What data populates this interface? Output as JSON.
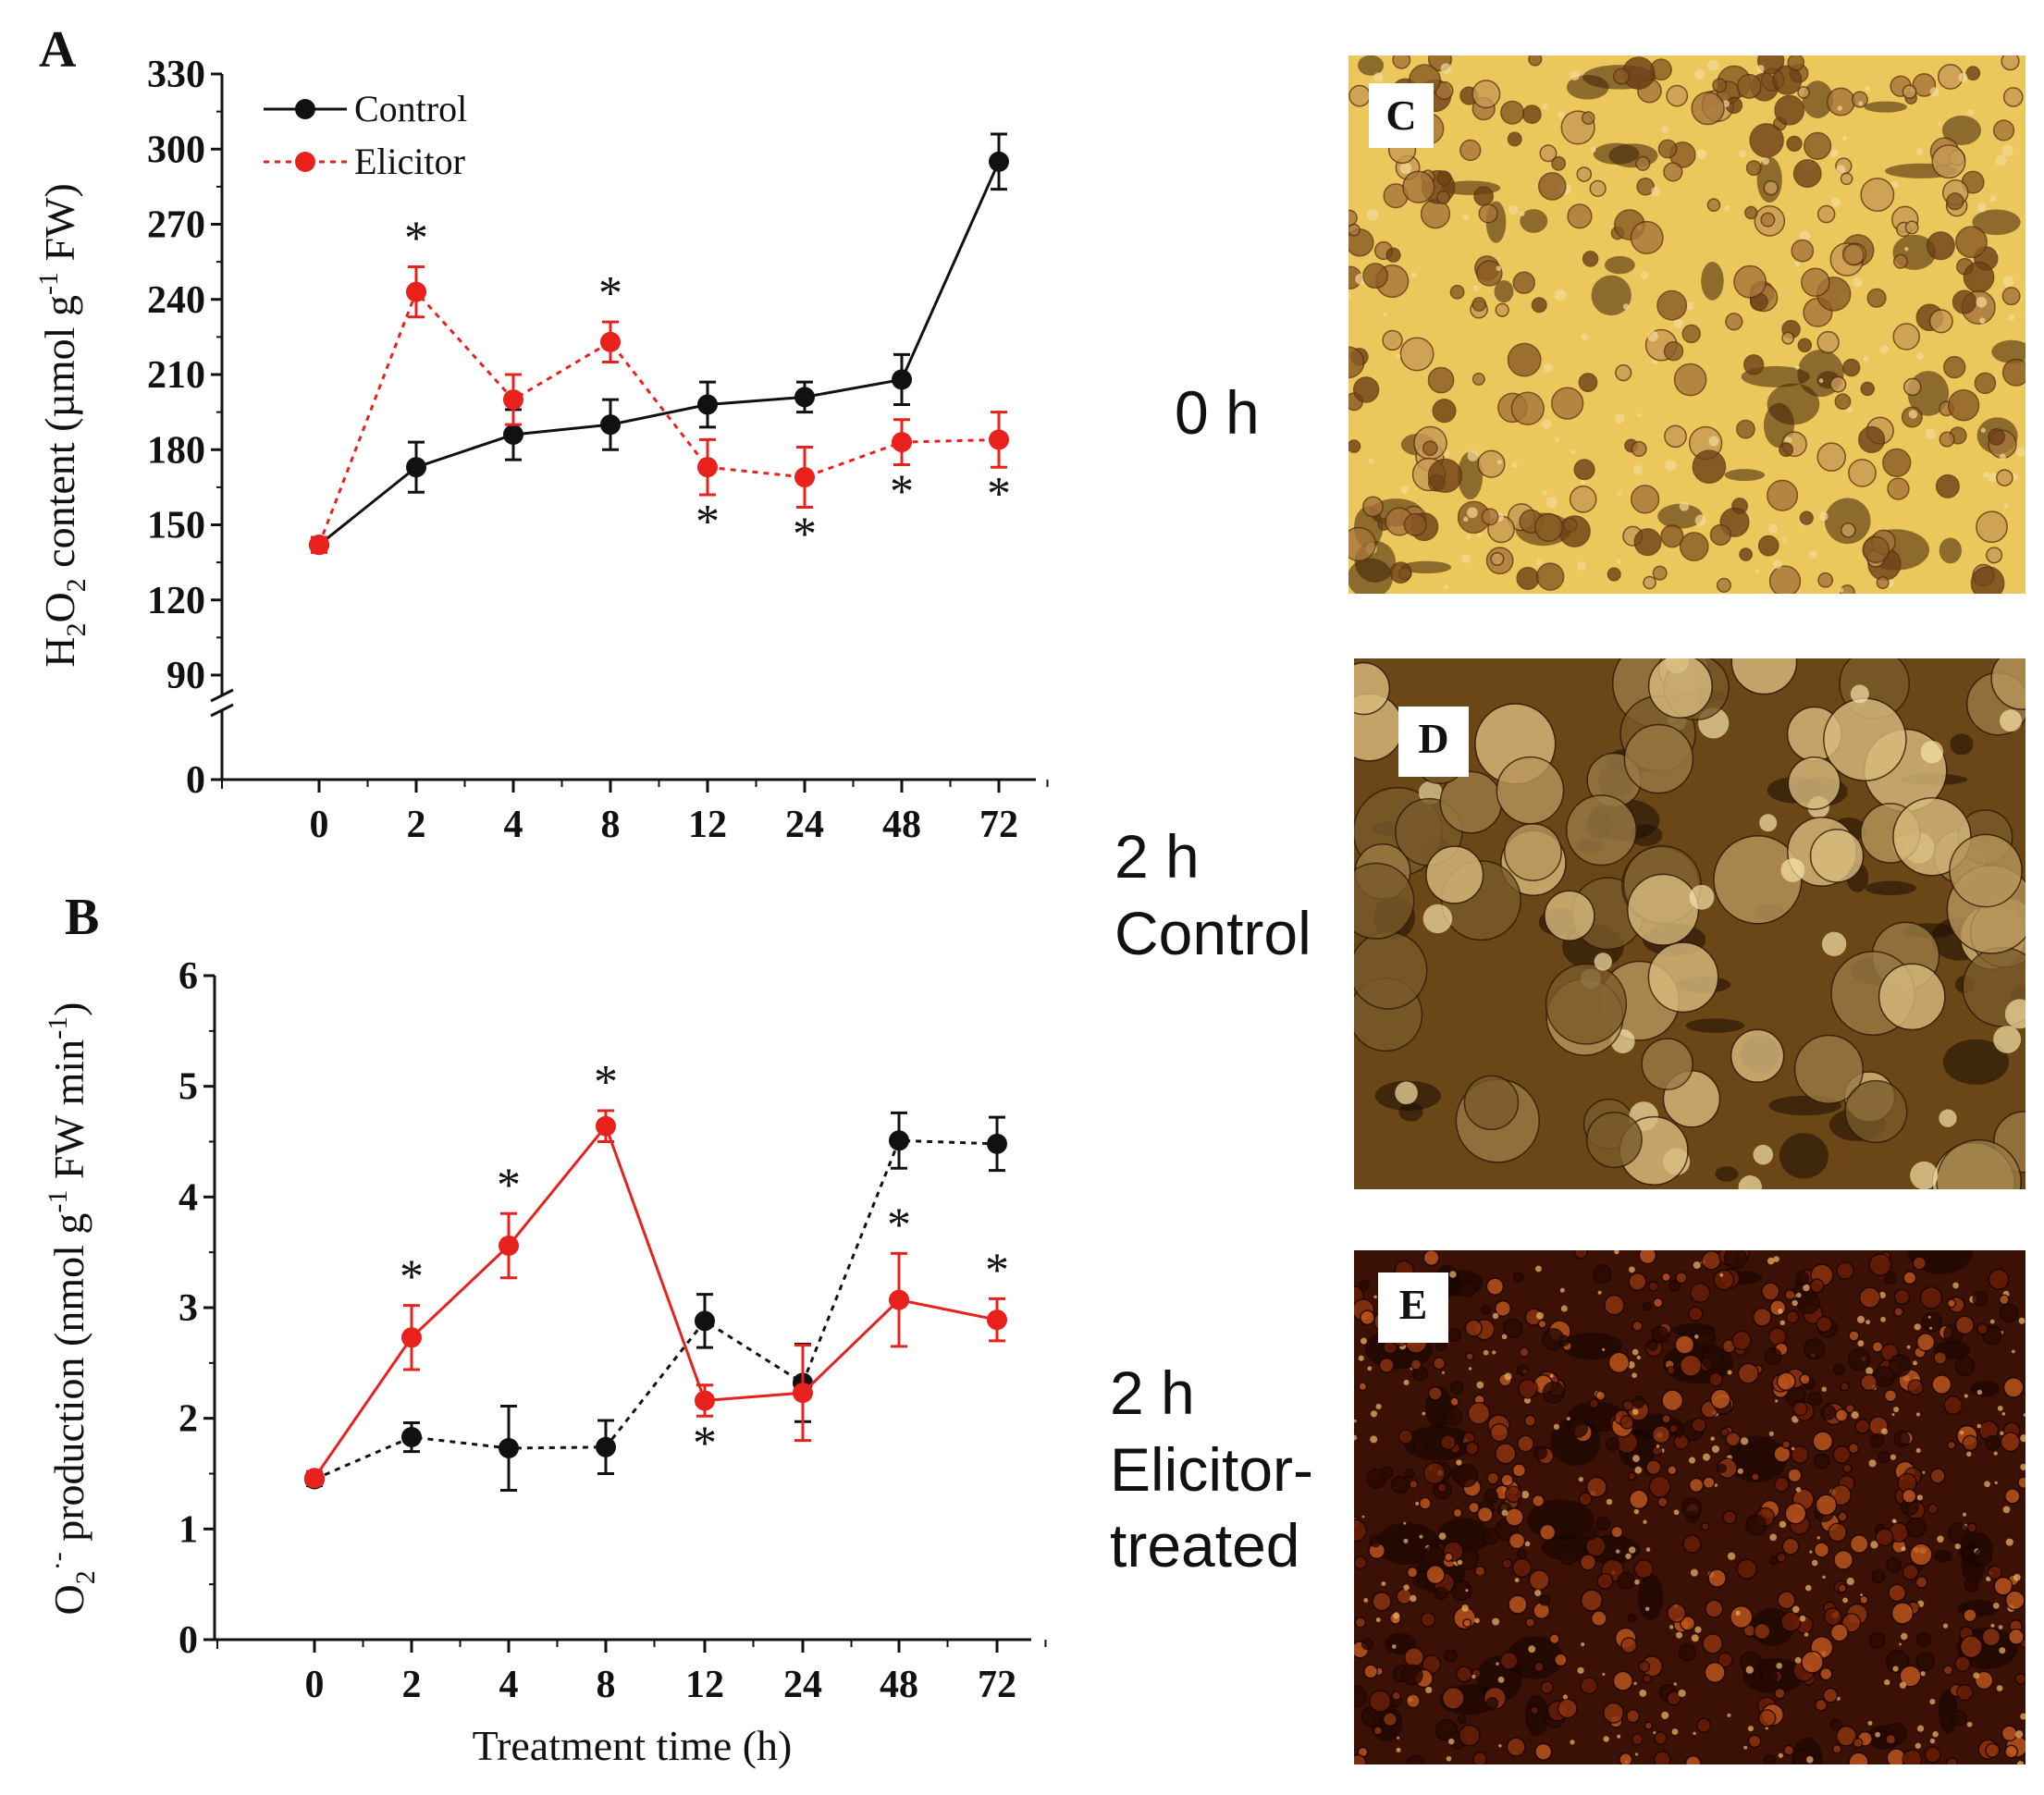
{
  "chart_data": [
    {
      "panel": "A",
      "type": "line",
      "categories": [
        "0",
        "2",
        "4",
        "8",
        "12",
        "24",
        "48",
        "72"
      ],
      "ylabel_parts": [
        "H",
        "2",
        "O",
        "2",
        " content (µmol g",
        "-1",
        " FW)"
      ],
      "yticks": [
        0,
        90,
        120,
        150,
        180,
        210,
        240,
        270,
        300,
        330
      ],
      "ylim": [
        0,
        330
      ],
      "axis_break": [
        0,
        90
      ],
      "legend": {
        "position": "top-left",
        "entries": [
          "Control",
          "Elicitor"
        ]
      },
      "series": [
        {
          "name": "Control",
          "color": "#111111",
          "dash": "solid",
          "values": [
            142,
            173,
            186,
            190,
            198,
            201,
            208,
            295
          ],
          "errors": [
            3,
            10,
            10,
            10,
            9,
            6,
            10,
            11
          ]
        },
        {
          "name": "Elicitor",
          "color": "#e8211d",
          "dash": "dotted",
          "values": [
            142,
            243,
            200,
            223,
            173,
            169,
            183,
            184
          ],
          "errors": [
            3,
            10,
            10,
            8,
            11,
            12,
            9,
            11
          ]
        }
      ],
      "significance": [
        {
          "index": 1,
          "series": "Elicitor",
          "side": "above",
          "label": "*"
        },
        {
          "index": 3,
          "series": "Elicitor",
          "side": "above",
          "label": "*"
        },
        {
          "index": 4,
          "series": "Elicitor",
          "side": "below",
          "label": "*"
        },
        {
          "index": 5,
          "series": "Elicitor",
          "side": "below",
          "label": "*"
        },
        {
          "index": 6,
          "series": "Elicitor",
          "side": "below",
          "label": "*"
        },
        {
          "index": 7,
          "series": "Elicitor",
          "side": "below",
          "label": "*"
        }
      ]
    },
    {
      "panel": "B",
      "type": "line",
      "categories": [
        "0",
        "2",
        "4",
        "8",
        "12",
        "24",
        "48",
        "72"
      ],
      "xlabel": "Treatment time (h)",
      "ylabel_parts": [
        "O",
        "2",
        "·-",
        " production (nmol g",
        "-1",
        " FW min",
        "-1",
        ")"
      ],
      "yticks": [
        0,
        1,
        2,
        3,
        4,
        5,
        6
      ],
      "ylim": [
        0,
        6
      ],
      "series": [
        {
          "name": "Control",
          "color": "#111111",
          "dash": "dotted",
          "values": [
            1.45,
            1.83,
            1.73,
            1.74,
            2.88,
            2.32,
            4.51,
            4.48
          ],
          "errors": [
            0.06,
            0.13,
            0.38,
            0.24,
            0.24,
            0.35,
            0.25,
            0.24
          ]
        },
        {
          "name": "Elicitor",
          "color": "#e8211d",
          "dash": "solid",
          "values": [
            1.46,
            2.73,
            3.56,
            4.64,
            2.16,
            2.23,
            3.07,
            2.89
          ],
          "errors": [
            0.06,
            0.29,
            0.29,
            0.14,
            0.14,
            0.43,
            0.42,
            0.19
          ]
        }
      ],
      "significance": [
        {
          "index": 1,
          "series": "Elicitor",
          "side": "above",
          "label": "*"
        },
        {
          "index": 2,
          "series": "Elicitor",
          "side": "above",
          "label": "*"
        },
        {
          "index": 3,
          "series": "Elicitor",
          "side": "above",
          "label": "*"
        },
        {
          "index": 4,
          "series": "Elicitor",
          "side": "below",
          "label": "*"
        },
        {
          "index": 6,
          "series": "Elicitor",
          "side": "above",
          "label": "*"
        },
        {
          "index": 7,
          "series": "Elicitor",
          "side": "above",
          "label": "*"
        }
      ]
    }
  ],
  "micrographs": [
    {
      "tag": "C",
      "caption_lines": [
        "0 h"
      ],
      "tone": "light"
    },
    {
      "tag": "D",
      "caption_lines": [
        "2 h",
        "Control"
      ],
      "tone": "medium"
    },
    {
      "tag": "E",
      "caption_lines": [
        "2 h",
        "Elicitor-",
        "treated"
      ],
      "tone": "dark"
    }
  ]
}
